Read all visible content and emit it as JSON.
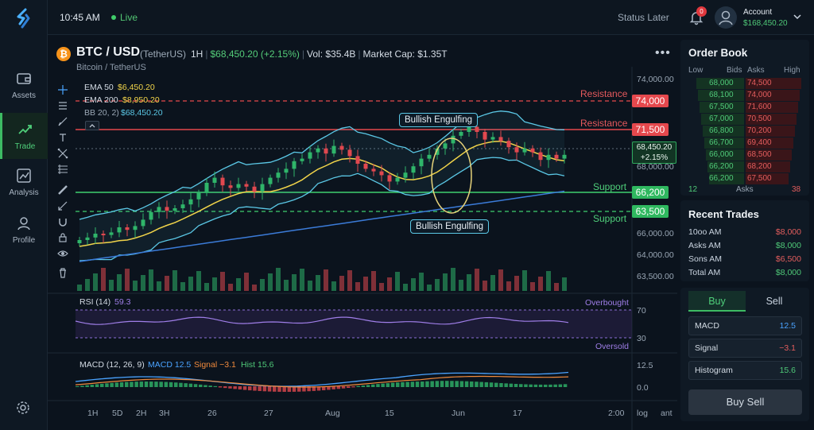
{
  "topbar": {
    "time": "10:45 AM",
    "live": "Live",
    "status": "Status Later",
    "notifications": "0",
    "account_label": "Account",
    "account_balance": "$168,450.20"
  },
  "nav": {
    "items": [
      {
        "label": "Assets",
        "icon": "wallet-icon"
      },
      {
        "label": "Trade",
        "icon": "trend-icon",
        "active": true
      },
      {
        "label": "Analysis",
        "icon": "chart-icon"
      },
      {
        "label": "Profile",
        "icon": "user-icon"
      }
    ],
    "settings_icon": "gear-icon"
  },
  "pair": {
    "symbol": "BTC / USD",
    "quote_name": "(TetherUS)",
    "interval": "1H",
    "price": "$68,450.20 (+2.15%)",
    "volume": "Vol: $35.4B",
    "market_cap_label": "Market Cap:",
    "market_cap": "$1.35T",
    "description": "Bitcoin / TetherUS",
    "coin_glyph": "₿"
  },
  "indicators": {
    "ema50_label": "EMA 50",
    "ema50_value": "$6,450.20",
    "ema200_label": "EMA 200",
    "ema200_value": "$8,950.20",
    "bb_label": "BB 20, 2)",
    "bb_value": "$68,450.20"
  },
  "annotations": {
    "bullish_top": "Bullish Engulfing",
    "bullish_bottom": "Bullish Engulfing",
    "resistance_1": "Resistance",
    "resistance_2": "Resistance",
    "support_1": "Support",
    "support_2": "Support"
  },
  "price_axis": {
    "ticks": [
      "74,000.00",
      "68,000.00",
      "66,000.00",
      "64,000.00",
      "63,500.00"
    ],
    "resistance_1_tag": "74,000",
    "resistance_2_tag": "71,500",
    "current_tag_price": "68,450.20",
    "current_tag_change": "+2.15%",
    "support_1_tag": "66,200",
    "support_2_tag": "63,500"
  },
  "rsi": {
    "label": "RSI (14)",
    "value": "59.3",
    "overbought": "Overbought",
    "oversold": "Oversold",
    "tick_high": "70",
    "tick_low": "30"
  },
  "macd": {
    "label": "MACD (12, 26, 9)",
    "macd": "MACD 12.5",
    "signal": "Signal −3.1",
    "hist": "Hist 15.6",
    "tick_high": "12.5",
    "tick_low": "0.0"
  },
  "time_axis": {
    "ranges": [
      "1H",
      "5D",
      "2H",
      "3H"
    ],
    "labels": [
      "26",
      "27",
      "Aug",
      "15",
      "Jun",
      "17"
    ],
    "end_time": "2:00",
    "log": "log",
    "auto": "ant"
  },
  "order_book": {
    "title": "Order Book",
    "headers": {
      "low": "Low",
      "bids": "Bids",
      "asks": "Asks",
      "high": "High"
    },
    "rows": [
      {
        "bid": "68,000",
        "ask": "74,500"
      },
      {
        "bid": "68,100",
        "ask": "74,000"
      },
      {
        "bid": "67,500",
        "ask": "71,600"
      },
      {
        "bid": "67,000",
        "ask": "70,500"
      },
      {
        "bid": "66,800",
        "ask": "70,200"
      },
      {
        "bid": "66,700",
        "ask": "69,400"
      },
      {
        "bid": "66,000",
        "ask": "68,500"
      },
      {
        "bid": "66,200",
        "ask": "68,200"
      },
      {
        "bid": "66,200",
        "ask": "67,500"
      }
    ],
    "footer_left": "12",
    "footer_mid": "Asks",
    "footer_right": "38"
  },
  "recent_trades": {
    "title": "Recent Trades",
    "rows": [
      {
        "label": "10oo AM",
        "value": "$8,000",
        "color": "#e35d5d"
      },
      {
        "label": "Asks AM",
        "value": "$8,000",
        "color": "#4fc978"
      },
      {
        "label": "Sons AM",
        "value": "$6,500",
        "color": "#e35d5d"
      },
      {
        "label": "Total AM",
        "value": "$8,000",
        "color": "#4fc978"
      }
    ]
  },
  "trade_panel": {
    "buy_tab": "Buy",
    "sell_tab": "Sell",
    "rows": [
      {
        "label": "MACD",
        "value": "12.5",
        "color": "#4aa3ff"
      },
      {
        "label": "Signal",
        "value": "−3.1",
        "color": "#e35d5d"
      },
      {
        "label": "Histogram",
        "value": "15.6",
        "color": "#4fc978"
      }
    ],
    "submit": "Buy Sell"
  },
  "colors": {
    "up": "#2fb56a",
    "down": "#e0484f",
    "ema50": "#f1d44a",
    "ema200": "#3b7bd8",
    "bollinger": "#5bc8e6",
    "support": "#3fcf6e",
    "resistance": "#e5484d"
  },
  "chart_data": {
    "type": "candlestick",
    "price_levels": {
      "resistance": [
        74000,
        71500
      ],
      "support": [
        66200,
        63500
      ],
      "current": 68450.2
    },
    "rsi_bounds": [
      30,
      70
    ],
    "rsi_value": 59.3,
    "macd_value": 12.5,
    "signal_value": -3.1,
    "histogram_value": 15.6
  }
}
